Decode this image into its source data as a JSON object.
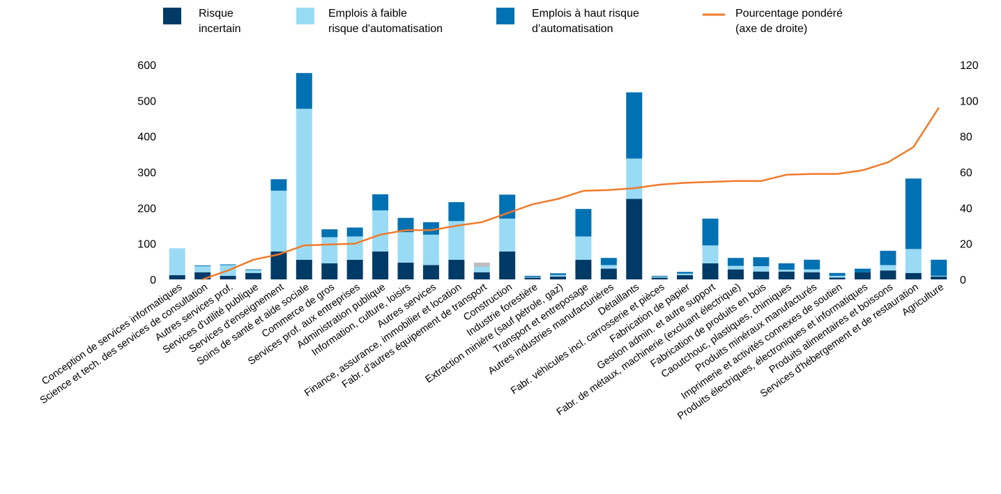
{
  "chart_data": {
    "type": "bar",
    "stacked": true,
    "colors": {
      "risque_incertain": "#003a66",
      "faible_risque": "#99dbf5",
      "haut_risque": "#0071b2",
      "other": "#bdbdbd",
      "line": "#f07a2a"
    },
    "legend": {
      "placement": "top",
      "entries": [
        {
          "key": "risque_incertain",
          "lines": [
            "Risque",
            "incertain"
          ],
          "kind": "box"
        },
        {
          "key": "faible_risque",
          "lines": [
            "Emplois à faible",
            "risque d'automatisation"
          ],
          "kind": "box"
        },
        {
          "key": "haut_risque",
          "lines": [
            "Emplois à haut risque",
            "d’automatisation"
          ],
          "kind": "box"
        },
        {
          "key": "line",
          "lines": [
            "Pourcentage pondéré",
            "(axe de droite)"
          ],
          "kind": "line"
        }
      ]
    },
    "y_left": {
      "min": 0,
      "max": 600,
      "ticks": [
        "0",
        "100",
        "200",
        "300",
        "400",
        "500",
        "600"
      ]
    },
    "y_right": {
      "min": 0,
      "max": 120,
      "ticks": [
        "0",
        "20",
        "40",
        "60",
        "80",
        "100",
        "120"
      ]
    },
    "grid": false,
    "categories": [
      "Conception de services informatiques",
      "Science et tech. des services de consultation",
      "Autres services prof.",
      "Services d'utilité publique",
      "Services d'enseignement",
      "Soins de santé et aide sociale",
      "Commerce de gros",
      "Services prof. aux entreprises",
      "Administration publique",
      "Information, culture, loisirs",
      "Autres services",
      "Finance, assurance, immobilier et location",
      "Fabr. d'autres équipement de transport",
      "Construction",
      "Industrie forestière",
      "Extraction minière (sauf pétrole, gaz)",
      "Transport et entreposage",
      "Autres industries manufacturières",
      "Détaillants",
      "Fabr. véhicules incl. carrosserie et pièces",
      "Fabrication de papier",
      "Gestion admin. et autre support",
      "Fabr. de métaux, machinerie (excluant électrique)",
      "Fabrication de produits en bois",
      "Caoutchouc, plastiques, chimiques",
      "Produits minéraux manufacturés",
      "Imprimerie et activités connexes de soutien",
      "Produits électriques, électroniques et informatiques",
      "Produits alimentaires et boissons",
      "Services d'hébergement et de restauration",
      "Agriculture"
    ],
    "series": [
      {
        "key": "risque_incertain",
        "values": [
          12,
          20,
          10,
          18,
          78,
          55,
          45,
          55,
          78,
          47,
          40,
          55,
          20,
          78,
          5,
          8,
          55,
          30,
          225,
          5,
          12,
          45,
          28,
          22,
          22,
          20,
          5,
          20,
          25,
          18,
          8
        ]
      },
      {
        "key": "faible_risque",
        "values": [
          75,
          17,
          30,
          8,
          170,
          422,
          73,
          65,
          115,
          85,
          85,
          108,
          15,
          92,
          2,
          4,
          65,
          10,
          113,
          3,
          4,
          50,
          10,
          15,
          5,
          8,
          5,
          0,
          15,
          67,
          2
        ]
      },
      {
        "key": "haut_risque",
        "values": [
          0,
          2,
          2,
          2,
          32,
          100,
          22,
          25,
          45,
          40,
          35,
          53,
          0,
          67,
          3,
          5,
          77,
          20,
          185,
          2,
          5,
          75,
          22,
          25,
          18,
          27,
          8,
          10,
          40,
          197,
          45
        ]
      },
      {
        "key": "other",
        "values": [
          0,
          0,
          0,
          0,
          0,
          0,
          0,
          0,
          0,
          0,
          0,
          0,
          12,
          0,
          0,
          0,
          0,
          0,
          0,
          0,
          0,
          0,
          0,
          0,
          0,
          0,
          0,
          0,
          0,
          0,
          0
        ]
      }
    ],
    "line_series": {
      "key": "line",
      "axis": "right",
      "values": [
        null,
        0,
        5,
        11,
        14,
        19,
        19.5,
        20,
        25,
        27.5,
        27.5,
        30,
        32,
        37,
        42,
        45,
        49.5,
        50,
        51,
        53,
        54,
        54.5,
        55,
        55,
        58.5,
        59,
        59,
        61,
        65.5,
        74,
        96
      ]
    }
  }
}
